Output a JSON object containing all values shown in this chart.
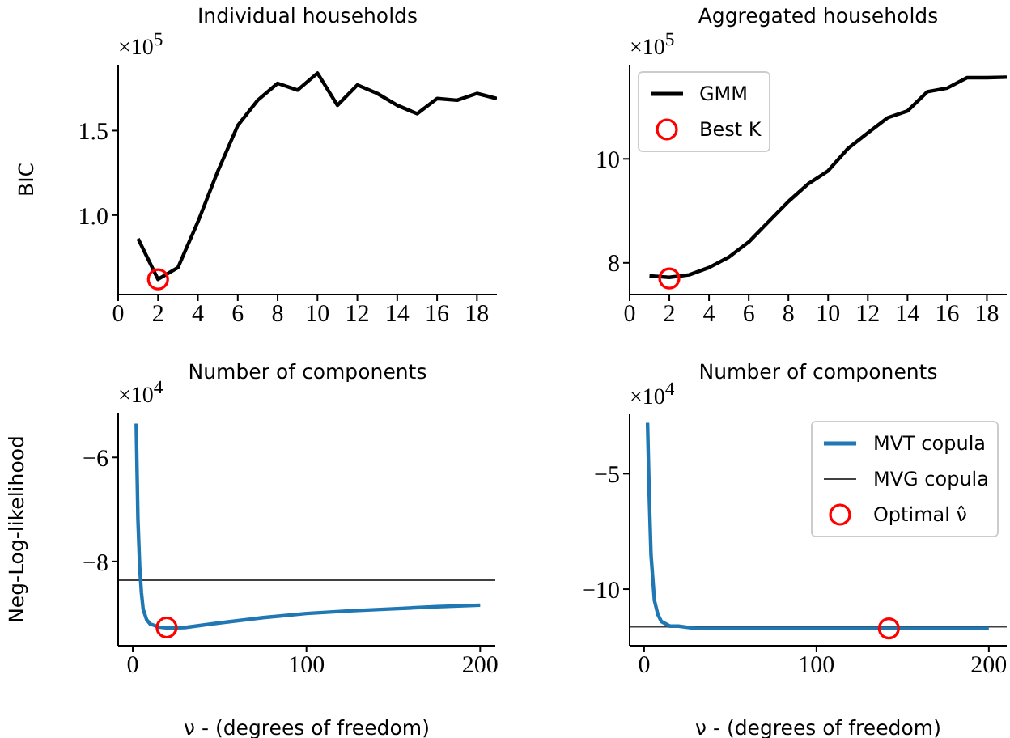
{
  "chart_data": [
    {
      "type": "line",
      "title": "Individual households",
      "xlabel": "Number of components",
      "ylabel": "BIC",
      "annotations": [
        "×10$^{5}$"
      ],
      "xlim": [
        0,
        19
      ],
      "xticks": [
        0,
        2,
        4,
        6,
        8,
        10,
        12,
        14,
        16,
        18
      ],
      "ylim": [
        0.53,
        1.89
      ],
      "yticks": [
        {
          "value": 1,
          "label": "1.0"
        },
        1.5
      ],
      "legend": false,
      "series": [
        {
          "type": "line",
          "color": "#000000",
          "x": [
            1,
            2,
            3,
            4,
            5,
            6,
            7,
            8,
            9,
            10,
            11,
            12,
            13,
            14,
            15,
            16,
            17,
            18,
            19
          ],
          "values": [
            0.86,
            0.62,
            0.69,
            0.96,
            1.26,
            1.53,
            1.68,
            1.78,
            1.74,
            1.84,
            1.65,
            1.77,
            1.72,
            1.65,
            1.6,
            1.69,
            1.68,
            1.72,
            1.69
          ]
        },
        {
          "type": "scatter",
          "marker": "circle",
          "color": "#ff0000",
          "x": [
            2
          ],
          "values": [
            0.62
          ]
        }
      ]
    },
    {
      "type": "line",
      "title": "Aggregated households",
      "xlabel": "Number of components",
      "annotations": [
        "×10$^{5}$"
      ],
      "xlim": [
        0,
        19
      ],
      "xticks": [
        0,
        2,
        4,
        6,
        8,
        10,
        12,
        14,
        16,
        18
      ],
      "ylim": [
        7.39,
        11.81
      ],
      "yticks": [
        8,
        10
      ],
      "legend": "top left",
      "series": [
        {
          "type": "line",
          "name": "GMM",
          "color": "#000000",
          "x": [
            1,
            2,
            3,
            4,
            5,
            6,
            7,
            8,
            9,
            10,
            11,
            12,
            13,
            14,
            15,
            16,
            17,
            18,
            19
          ],
          "values": [
            7.75,
            7.72,
            7.77,
            7.91,
            8.11,
            8.4,
            8.79,
            9.18,
            9.52,
            9.77,
            10.2,
            10.5,
            10.79,
            10.92,
            11.29,
            11.36,
            11.56,
            11.56,
            11.57
          ]
        },
        {
          "type": "scatter",
          "marker": "circle",
          "name": "Best K",
          "color": "#ff0000",
          "x": [
            2
          ],
          "values": [
            7.7
          ]
        }
      ]
    },
    {
      "type": "line",
      "xlabel": "ν - (degrees of freedom)",
      "ylabel": "Neg-Log-likelihood",
      "annotations": [
        "×10$^{4}$"
      ],
      "xlim": [
        -8.4,
        208.7
      ],
      "xticks": [
        0,
        100,
        200
      ],
      "ylim": [
        -9.62,
        -5.14
      ],
      "yticks": [
        {
          "value": -6,
          "label": "−6"
        },
        {
          "value": -8,
          "label": "−8"
        }
      ],
      "legend": false,
      "ref_lines": [
        {
          "axis": "y",
          "value": -8.36,
          "color": "#404040"
        }
      ],
      "series": [
        {
          "type": "line",
          "color": "#1f77b4",
          "x": [
            2,
            2.5,
            3,
            4,
            5,
            6,
            8,
            10,
            15,
            20,
            30,
            50,
            75,
            100,
            125,
            150,
            175,
            200
          ],
          "values": [
            -5.35,
            -6.3,
            -7.2,
            -8.1,
            -8.6,
            -8.92,
            -9.12,
            -9.2,
            -9.26,
            -9.28,
            -9.27,
            -9.18,
            -9.08,
            -9.0,
            -8.95,
            -8.91,
            -8.87,
            -8.84
          ]
        },
        {
          "type": "scatter",
          "marker": "circle",
          "color": "#ff0000",
          "x": [
            19.5
          ],
          "values": [
            -9.27
          ]
        }
      ]
    },
    {
      "type": "line",
      "xlabel": "ν - (degrees of freedom)",
      "annotations": [
        "×10$^{4}$"
      ],
      "xlim": [
        -8.4,
        210.4
      ],
      "xticks": [
        0,
        100,
        200
      ],
      "ylim": [
        -12.45,
        -2.43
      ],
      "yticks": [
        {
          "value": -5,
          "label": "−5"
        },
        {
          "value": -10,
          "label": "−10"
        }
      ],
      "legend": "top right",
      "ref_lines": [
        {
          "axis": "y",
          "value": -11.63,
          "label": "MVG copula",
          "color": "#404040"
        }
      ],
      "series": [
        {
          "type": "line",
          "name": "MVT copula",
          "color": "#1f77b4",
          "x": [
            2,
            3,
            4,
            6,
            8,
            10,
            15,
            20,
            30,
            50,
            100,
            150,
            200
          ],
          "values": [
            -2.8,
            -6,
            -8.5,
            -10.5,
            -11.1,
            -11.4,
            -11.6,
            -11.6,
            -11.7,
            -11.7,
            -11.7,
            -11.7,
            -11.7
          ]
        },
        {
          "type": "scatter",
          "marker": "circle",
          "name": "Optimal ν̂",
          "color": "#ff0000",
          "x": [
            142
          ],
          "values": [
            -11.7
          ]
        }
      ]
    }
  ]
}
